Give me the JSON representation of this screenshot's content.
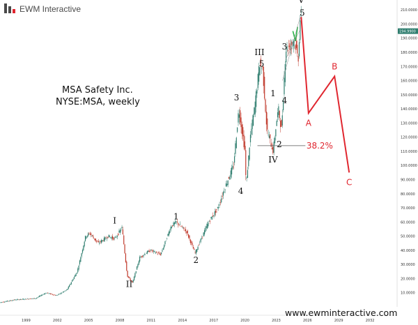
{
  "brand": {
    "name": "EWM Interactive",
    "website": "www.ewminteractive.com"
  },
  "colors": {
    "candle_up": "#2e7d6e",
    "candle_down": "#c0392b",
    "projection": "#e0262f",
    "green_wave": "#2bb34a",
    "axis": "#888888",
    "price_tag": "#2e7d6e"
  },
  "chart_data": {
    "type": "line",
    "title": "MSA Safety Inc.",
    "subtitle": "NYSE:MSA, weekly",
    "xlabel": "",
    "ylabel": "",
    "xlim": [
      1996.5,
      2034.6
    ],
    "ylim": [
      0,
      217.0
    ],
    "x_tick_labels": [
      "1999",
      "2002",
      "2005",
      "2008",
      "2011",
      "2014",
      "2017",
      "2020",
      "2023",
      "2026",
      "2029",
      "2032"
    ],
    "y_tick_labels": [
      "10.0000",
      "20.0000",
      "30.0000",
      "40.0000",
      "50.0000",
      "60.0000",
      "70.0000",
      "80.0000",
      "90.0000",
      "100.0000",
      "110.0000",
      "120.0000",
      "130.0000",
      "140.0000",
      "150.0000",
      "160.0000",
      "170.0000",
      "180.0000",
      "190.0000",
      "200.0000",
      "210.0000"
    ],
    "last_price": "194.9900",
    "series": [
      {
        "name": "MSA price (weekly, approx.)",
        "x": [
          1996.5,
          1998,
          2000,
          2001,
          2002,
          2003,
          2004,
          2004.8,
          2005.2,
          2006,
          2007,
          2007.6,
          2008.3,
          2008.8,
          2009.3,
          2010,
          2011,
          2012,
          2013,
          2013.5,
          2014.5,
          2015.3,
          2016,
          2016.6,
          2017.5,
          2018.2,
          2019,
          2019.5,
          2020.1,
          2020.2,
          2020.6,
          2021,
          2021.5,
          2021.8,
          2022.2,
          2022.8,
          2023.1,
          2023.3,
          2023.6,
          2024,
          2024.5,
          2024.8,
          2025.2,
          2025.4
        ],
        "values": [
          3,
          5,
          6,
          10,
          8,
          12,
          25,
          50,
          52,
          45,
          50,
          48,
          56,
          22,
          17,
          35,
          40,
          37,
          57,
          60,
          53,
          38,
          50,
          60,
          70,
          85,
          100,
          140,
          110,
          85,
          120,
          140,
          172,
          168,
          125,
          110,
          130,
          140,
          125,
          182,
          185,
          190,
          175,
          205
        ]
      },
      {
        "name": "Projected ABC correction",
        "x": [
          2025.4,
          2026.1,
          2028.6,
          2030.0
        ],
        "values": [
          205,
          137,
          163,
          95
        ]
      }
    ],
    "wave_labels": [
      {
        "label": "I",
        "x": 2007.5,
        "y": 59,
        "projected": false
      },
      {
        "label": "II",
        "x": 2008.9,
        "y": 14,
        "projected": false
      },
      {
        "label": "1",
        "x": 2013.4,
        "y": 62,
        "projected": false
      },
      {
        "label": "2",
        "x": 2015.3,
        "y": 31,
        "projected": false
      },
      {
        "label": "3",
        "x": 2019.2,
        "y": 146,
        "projected": false
      },
      {
        "label": "4",
        "x": 2019.6,
        "y": 80,
        "projected": false
      },
      {
        "label": "III",
        "x": 2021.4,
        "y": 178,
        "projected": false
      },
      {
        "label": "5",
        "x": 2021.6,
        "y": 170,
        "projected": false
      },
      {
        "label": "1",
        "x": 2022.7,
        "y": 149,
        "projected": false
      },
      {
        "label": "4",
        "x": 2023.8,
        "y": 144,
        "projected": false
      },
      {
        "label": "2",
        "x": 2023.3,
        "y": 113,
        "projected": false
      },
      {
        "label": "IV",
        "x": 2022.7,
        "y": 102,
        "projected": false
      },
      {
        "label": "3",
        "x": 2023.8,
        "y": 182,
        "projected": false
      },
      {
        "label": "5",
        "x": 2025.5,
        "y": 206,
        "projected": false
      },
      {
        "label": "V",
        "x": 2025.4,
        "y": 215,
        "projected": false
      },
      {
        "label": "A",
        "x": 2026.1,
        "y": 128,
        "projected": true
      },
      {
        "label": "B",
        "x": 2028.6,
        "y": 168,
        "projected": true
      },
      {
        "label": "C",
        "x": 2030.0,
        "y": 86,
        "projected": true
      }
    ],
    "fib_level": {
      "label": "38.2%",
      "value": 114
    }
  }
}
